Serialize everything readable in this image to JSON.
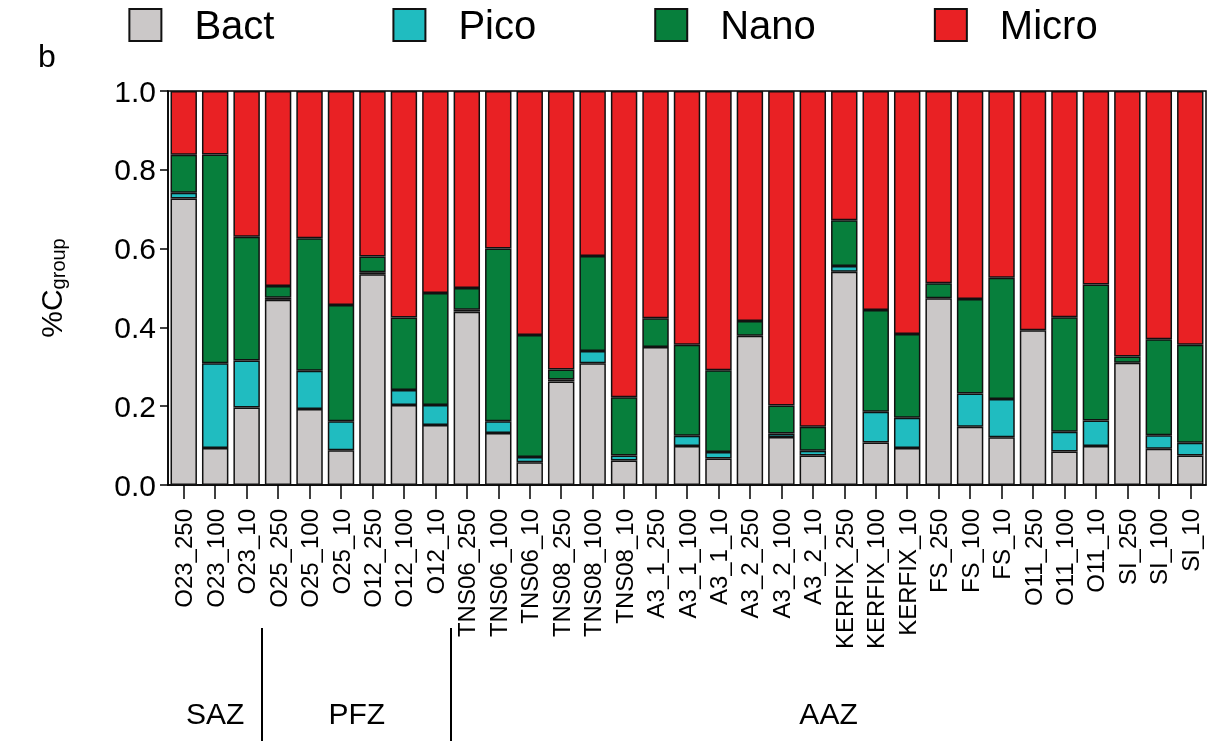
{
  "chart_data": {
    "type": "bar",
    "stacked": true,
    "ylabel": "%C$_{group}$",
    "annotations": [
      "b",
      "SAZ",
      "PFZ",
      "AAZ"
    ],
    "categories": [
      "O23_250",
      "O23_100",
      "O23_10",
      "O25_250",
      "O25_100",
      "O25_10",
      "O12_250",
      "O12_100",
      "O12_10",
      "TNS06_250",
      "TNS06_100",
      "TNS06_10",
      "TNS08_250",
      "TNS08_100",
      "TNS08_10",
      "A3_1_250",
      "A3_1_100",
      "A3_1_10",
      "A3_2_250",
      "A3_2_100",
      "A3_2_10",
      "KERFIX_250",
      "KERFIX_100",
      "KERFIX_10",
      "FS_250",
      "FS_100",
      "FS_10",
      "O11_250",
      "O11_100",
      "O11_10",
      "SI_250",
      "SI_100",
      "SI_10"
    ],
    "series": [
      {
        "name": "Bact",
        "color": "#cbc8c8",
        "values": [
          0.727,
          0.094,
          0.197,
          0.47,
          0.193,
          0.088,
          0.535,
          0.203,
          0.152,
          0.44,
          0.132,
          0.058,
          0.263,
          0.309,
          0.062,
          0.35,
          0.099,
          0.067,
          0.379,
          0.122,
          0.075,
          0.541,
          0.108,
          0.094,
          0.474,
          0.148,
          0.121,
          0.393,
          0.085,
          0.099,
          0.31,
          0.092,
          0.075
        ]
      },
      {
        "name": "Pico",
        "color": "#20bcc0",
        "values": [
          0.015,
          0.215,
          0.119,
          0.005,
          0.097,
          0.074,
          0.005,
          0.038,
          0.051,
          0.005,
          0.03,
          0.013,
          0.005,
          0.031,
          0.013,
          null,
          0.026,
          0.017,
          null,
          0.009,
          0.012,
          0.015,
          0.078,
          0.077,
          null,
          0.084,
          0.097,
          null,
          0.05,
          0.065,
          null,
          0.034,
          0.032
        ]
      },
      {
        "name": "Nano",
        "color": "#077f3c",
        "values": [
          0.096,
          0.53,
          0.314,
          0.03,
          0.336,
          0.295,
          0.04,
          0.184,
          0.284,
          0.055,
          0.438,
          0.31,
          0.025,
          0.241,
          0.148,
          0.073,
          0.231,
          0.207,
          0.037,
          0.071,
          0.061,
          0.116,
          0.258,
          0.212,
          0.038,
          0.24,
          0.308,
          null,
          0.291,
          0.345,
          0.016,
          0.244,
          0.249
        ]
      },
      {
        "name": "Micro",
        "color": "#e92124",
        "values": [
          0.162,
          0.161,
          0.37,
          0.495,
          0.374,
          0.543,
          0.42,
          0.575,
          0.513,
          0.5,
          0.4,
          0.619,
          0.707,
          0.419,
          0.777,
          0.577,
          0.644,
          0.709,
          0.584,
          0.798,
          0.852,
          0.328,
          0.556,
          0.617,
          0.488,
          0.528,
          0.474,
          0.607,
          0.574,
          0.491,
          0.674,
          0.63,
          0.644
        ]
      }
    ],
    "ylim": [
      0,
      1
    ],
    "yticks": [
      {
        "value": 0,
        "label": "0.0"
      },
      {
        "value": 0.2,
        "label": "0.2"
      },
      {
        "value": 0.4,
        "label": "0.4"
      },
      {
        "value": 0.6,
        "label": "0.6"
      },
      {
        "value": 0.8,
        "label": "0.8"
      },
      {
        "value": 1,
        "label": "1.0"
      }
    ],
    "legend": "top",
    "grid": false
  }
}
